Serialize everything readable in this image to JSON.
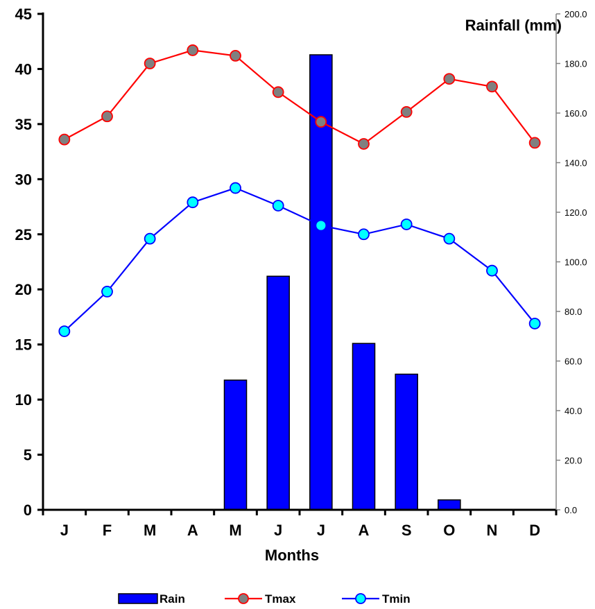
{
  "chart_data": {
    "type": "bar",
    "categories": [
      "J",
      "F",
      "M",
      "A",
      "M",
      "J",
      "J",
      "A",
      "S",
      "O",
      "N",
      "D"
    ],
    "xlabel": "Months",
    "y2label": "Rainfall (mm)",
    "ylim": [
      0,
      45
    ],
    "y2lim": [
      0,
      200
    ],
    "yticks": [
      "0",
      "5",
      "10",
      "15",
      "20",
      "25",
      "30",
      "35",
      "40",
      "45"
    ],
    "y2ticks": [
      "0.0",
      "20.0",
      "40.0",
      "60.0",
      "80.0",
      "100.0",
      "120.0",
      "140.0",
      "160.0",
      "180.0",
      "200.0"
    ],
    "grid": false,
    "legend_position": "bottom",
    "series": [
      {
        "name": "Rain",
        "type": "bar",
        "axis": "right",
        "color": "#0000FF",
        "values": [
          0,
          0,
          0,
          0,
          52.3,
          94.2,
          183.5,
          67.1,
          54.7,
          4.0,
          0,
          0
        ]
      },
      {
        "name": "Tmax",
        "type": "line",
        "axis": "left",
        "color": "#FF0000",
        "marker_color": "#808080",
        "values": [
          33.6,
          35.7,
          40.5,
          41.7,
          41.2,
          37.9,
          35.2,
          33.2,
          36.1,
          39.1,
          38.4,
          33.3
        ]
      },
      {
        "name": "Tmin",
        "type": "line",
        "axis": "left",
        "color": "#0000FF",
        "marker_color": "#00FFFF",
        "values": [
          16.2,
          19.8,
          24.6,
          27.9,
          29.2,
          27.6,
          25.8,
          25.0,
          25.9,
          24.6,
          21.7,
          16.9
        ]
      }
    ]
  }
}
